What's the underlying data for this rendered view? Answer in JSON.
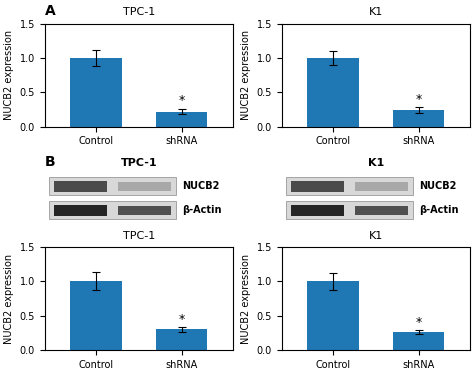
{
  "chart_data": [
    {
      "type": "bar",
      "panel": "A",
      "title": "TPC-1",
      "categories": [
        "Control",
        "shRNA"
      ],
      "values": [
        1.0,
        0.22
      ],
      "errors": [
        0.12,
        0.04
      ],
      "ylabel": "NUCB2 expression",
      "ylim": [
        0,
        1.5
      ],
      "yticks": [
        0.0,
        0.5,
        1.0,
        1.5
      ],
      "annotations": [
        {
          "category": "shRNA",
          "text": "*"
        }
      ]
    },
    {
      "type": "bar",
      "title": "K1",
      "categories": [
        "Control",
        "shRNA"
      ],
      "values": [
        1.0,
        0.24
      ],
      "errors": [
        0.1,
        0.04
      ],
      "ylabel": "NUCB2 expression",
      "ylim": [
        0,
        1.5
      ],
      "yticks": [
        0.0,
        0.5,
        1.0,
        1.5
      ],
      "annotations": [
        {
          "category": "shRNA",
          "text": "*"
        }
      ]
    },
    {
      "type": "blot",
      "panel": "B",
      "title": "TPC-1",
      "row_labels": [
        "NUCB2",
        "β-Actin"
      ]
    },
    {
      "type": "blot",
      "title": "K1",
      "row_labels": [
        "NUCB2",
        "β-Actin"
      ]
    },
    {
      "type": "bar",
      "title": "TPC-1",
      "categories": [
        "Control",
        "shRNA"
      ],
      "values": [
        1.0,
        0.3
      ],
      "errors": [
        0.13,
        0.03
      ],
      "ylabel": "NUCB2 expression",
      "ylim": [
        0,
        1.5
      ],
      "yticks": [
        0.0,
        0.5,
        1.0,
        1.5
      ],
      "annotations": [
        {
          "category": "shRNA",
          "text": "*"
        }
      ]
    },
    {
      "type": "bar",
      "title": "K1",
      "categories": [
        "Control",
        "shRNA"
      ],
      "values": [
        1.0,
        0.26
      ],
      "errors": [
        0.12,
        0.03
      ],
      "ylabel": "NUCB2 expression",
      "ylim": [
        0,
        1.5
      ],
      "yticks": [
        0.0,
        0.5,
        1.0,
        1.5
      ],
      "annotations": [
        {
          "category": "shRNA",
          "text": "*"
        }
      ]
    }
  ]
}
